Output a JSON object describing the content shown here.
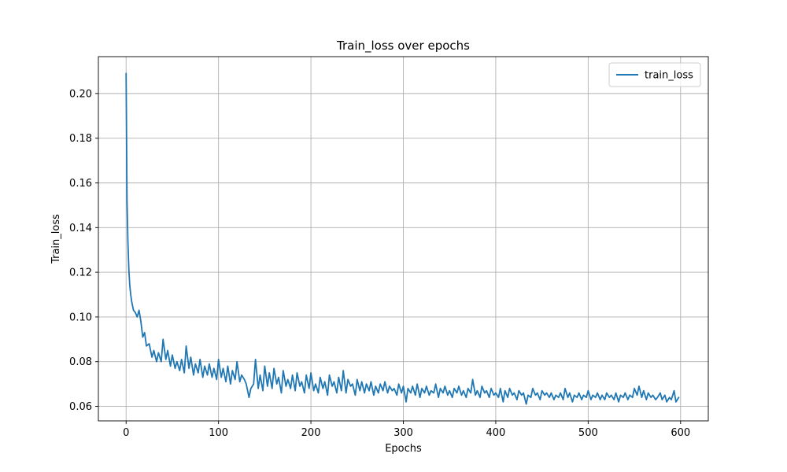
{
  "chart_data": {
    "type": "line",
    "title": "Train_loss over epochs",
    "xlabel": "Epochs",
    "ylabel": "Train_loss",
    "xlim": [
      -30,
      630
    ],
    "ylim": [
      0.0535,
      0.2165
    ],
    "xticks": [
      0,
      100,
      200,
      300,
      400,
      500,
      600
    ],
    "yticks": [
      0.06,
      0.08,
      0.1,
      0.12,
      0.14,
      0.16,
      0.18,
      0.2
    ],
    "ytick_labels": [
      "0.06",
      "0.08",
      "0.10",
      "0.12",
      "0.14",
      "0.16",
      "0.18",
      "0.20"
    ],
    "grid": true,
    "legend": {
      "position": "top-right",
      "entries": [
        "train_loss"
      ]
    },
    "series": [
      {
        "name": "train_loss",
        "color": "#1f77b4",
        "x": [
          0,
          1,
          2,
          3,
          4,
          5,
          6,
          8,
          10,
          12,
          14,
          16,
          18,
          20,
          22,
          25,
          28,
          30,
          33,
          35,
          38,
          40,
          43,
          45,
          48,
          50,
          53,
          55,
          58,
          60,
          63,
          65,
          68,
          70,
          73,
          75,
          78,
          80,
          83,
          85,
          88,
          90,
          93,
          95,
          98,
          100,
          103,
          105,
          108,
          110,
          113,
          115,
          118,
          120,
          123,
          125,
          128,
          130,
          133,
          135,
          138,
          140,
          143,
          145,
          148,
          150,
          153,
          155,
          158,
          160,
          163,
          165,
          168,
          170,
          173,
          175,
          178,
          180,
          183,
          185,
          188,
          190,
          193,
          195,
          198,
          200,
          203,
          205,
          208,
          210,
          213,
          215,
          218,
          220,
          223,
          225,
          228,
          230,
          233,
          235,
          238,
          240,
          243,
          245,
          248,
          250,
          253,
          255,
          258,
          260,
          263,
          265,
          268,
          270,
          273,
          275,
          278,
          280,
          283,
          285,
          288,
          290,
          293,
          295,
          298,
          300,
          303,
          305,
          308,
          310,
          313,
          315,
          318,
          320,
          323,
          325,
          328,
          330,
          333,
          335,
          338,
          340,
          343,
          345,
          348,
          350,
          353,
          355,
          358,
          360,
          363,
          365,
          368,
          370,
          373,
          375,
          378,
          380,
          383,
          385,
          388,
          390,
          393,
          395,
          398,
          400,
          403,
          405,
          408,
          410,
          413,
          415,
          418,
          420,
          423,
          425,
          428,
          430,
          433,
          435,
          438,
          440,
          443,
          445,
          448,
          450,
          453,
          455,
          458,
          460,
          463,
          465,
          468,
          470,
          473,
          475,
          478,
          480,
          483,
          485,
          488,
          490,
          493,
          495,
          498,
          500,
          503,
          505,
          508,
          510,
          513,
          515,
          518,
          520,
          523,
          525,
          528,
          530,
          533,
          535,
          538,
          540,
          543,
          545,
          548,
          550,
          553,
          555,
          558,
          560,
          563,
          565,
          568,
          570,
          573,
          575,
          578,
          580,
          583,
          585,
          588,
          590,
          593,
          595,
          598
        ],
        "values": [
          0.209,
          0.152,
          0.133,
          0.121,
          0.114,
          0.11,
          0.107,
          0.103,
          0.102,
          0.1,
          0.103,
          0.098,
          0.091,
          0.093,
          0.087,
          0.088,
          0.082,
          0.085,
          0.08,
          0.084,
          0.08,
          0.09,
          0.081,
          0.085,
          0.078,
          0.083,
          0.077,
          0.08,
          0.076,
          0.081,
          0.075,
          0.087,
          0.077,
          0.082,
          0.074,
          0.079,
          0.075,
          0.081,
          0.073,
          0.078,
          0.074,
          0.079,
          0.073,
          0.077,
          0.072,
          0.081,
          0.073,
          0.077,
          0.071,
          0.078,
          0.07,
          0.076,
          0.072,
          0.08,
          0.071,
          0.074,
          0.072,
          0.07,
          0.064,
          0.068,
          0.07,
          0.081,
          0.068,
          0.074,
          0.067,
          0.078,
          0.069,
          0.075,
          0.068,
          0.077,
          0.07,
          0.073,
          0.066,
          0.076,
          0.069,
          0.072,
          0.068,
          0.074,
          0.067,
          0.075,
          0.069,
          0.071,
          0.066,
          0.074,
          0.068,
          0.075,
          0.067,
          0.07,
          0.066,
          0.073,
          0.068,
          0.071,
          0.065,
          0.074,
          0.069,
          0.071,
          0.066,
          0.073,
          0.067,
          0.076,
          0.066,
          0.072,
          0.069,
          0.07,
          0.065,
          0.072,
          0.067,
          0.071,
          0.066,
          0.07,
          0.067,
          0.071,
          0.065,
          0.069,
          0.066,
          0.07,
          0.067,
          0.071,
          0.066,
          0.069,
          0.067,
          0.068,
          0.065,
          0.07,
          0.066,
          0.069,
          0.062,
          0.068,
          0.066,
          0.069,
          0.065,
          0.07,
          0.064,
          0.068,
          0.066,
          0.069,
          0.065,
          0.067,
          0.066,
          0.07,
          0.064,
          0.068,
          0.066,
          0.069,
          0.065,
          0.067,
          0.064,
          0.068,
          0.066,
          0.069,
          0.065,
          0.067,
          0.064,
          0.068,
          0.066,
          0.072,
          0.065,
          0.067,
          0.064,
          0.069,
          0.066,
          0.067,
          0.064,
          0.068,
          0.065,
          0.066,
          0.064,
          0.068,
          0.062,
          0.067,
          0.064,
          0.068,
          0.065,
          0.066,
          0.063,
          0.067,
          0.065,
          0.066,
          0.061,
          0.065,
          0.064,
          0.068,
          0.065,
          0.066,
          0.063,
          0.067,
          0.065,
          0.066,
          0.064,
          0.066,
          0.063,
          0.065,
          0.064,
          0.066,
          0.063,
          0.068,
          0.064,
          0.066,
          0.062,
          0.065,
          0.064,
          0.066,
          0.063,
          0.065,
          0.064,
          0.067,
          0.063,
          0.065,
          0.064,
          0.066,
          0.063,
          0.065,
          0.063,
          0.066,
          0.064,
          0.065,
          0.063,
          0.066,
          0.062,
          0.065,
          0.064,
          0.066,
          0.063,
          0.065,
          0.064,
          0.068,
          0.065,
          0.069,
          0.064,
          0.067,
          0.063,
          0.066,
          0.064,
          0.065,
          0.063,
          0.064,
          0.066,
          0.063,
          0.065,
          0.062,
          0.064,
          0.063,
          0.067,
          0.062,
          0.064
        ]
      }
    ]
  }
}
